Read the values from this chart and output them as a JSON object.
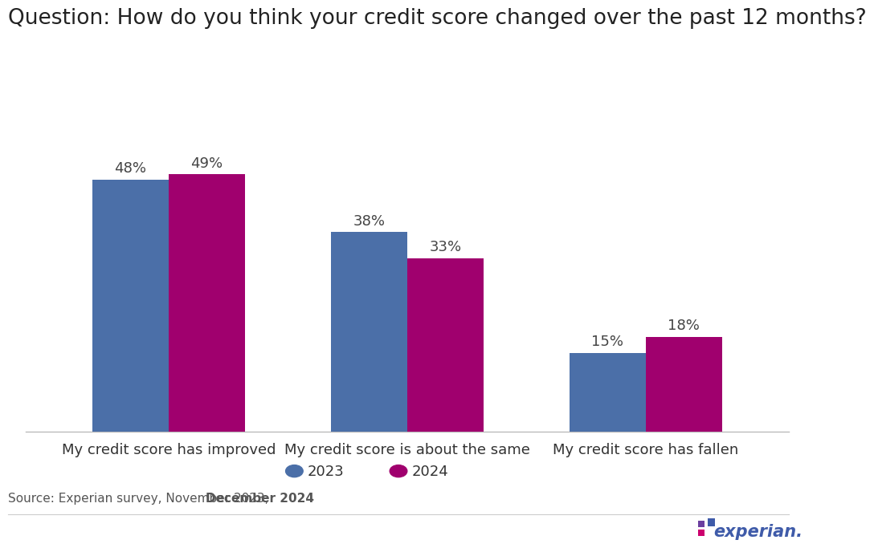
{
  "title": "Question: How do you think your credit score changed over the past 12 months?",
  "categories": [
    "My credit score has improved",
    "My credit score is about the same",
    "My credit score has fallen"
  ],
  "series_2023": [
    48,
    38,
    15
  ],
  "series_2024": [
    49,
    33,
    18
  ],
  "color_2023": "#4B6FA8",
  "color_2024": "#A0006E",
  "legend_labels": [
    "2023",
    "2024"
  ],
  "source_text_normal": "Source: Experian survey, November 2023, ",
  "source_text_bold": "December 2024",
  "bar_width": 0.32,
  "ylim": [
    0,
    60
  ],
  "title_fontsize": 19,
  "tick_fontsize": 13,
  "annotation_fontsize": 13,
  "legend_fontsize": 13,
  "source_fontsize": 11,
  "background_color": "#ffffff"
}
